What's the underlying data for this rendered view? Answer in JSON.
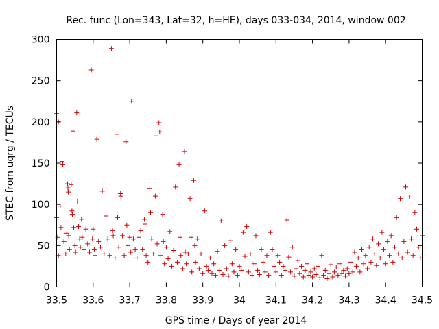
{
  "chart_data": {
    "type": "scatter",
    "title": "Rec. func (Lon=343, Lat=32, h=HE), days 033-034, 2014, window 002",
    "xlabel": "GPS time / Days of year 2014",
    "ylabel": "STEC from uqrg / TECUs",
    "xlim": [
      33.5,
      34.5
    ],
    "ylim": [
      0,
      300
    ],
    "xticks": [
      "33.5",
      "33.6",
      "33.7",
      "33.8",
      "33.9",
      "34",
      "34.1",
      "34.2",
      "34.3",
      "34.4",
      "34.5"
    ],
    "yticks": [
      "0",
      "50",
      "100",
      "150",
      "200",
      "250",
      "300"
    ],
    "grid": false,
    "marker": "plus",
    "color": "#cc0000",
    "series": [
      {
        "name": "STEC",
        "points": [
          [
            33.5,
            210
          ],
          [
            33.505,
            200
          ],
          [
            33.5,
            84
          ],
          [
            33.503,
            60
          ],
          [
            33.505,
            38
          ],
          [
            33.51,
            98
          ],
          [
            33.512,
            72
          ],
          [
            33.515,
            152
          ],
          [
            33.517,
            148
          ],
          [
            33.52,
            55
          ],
          [
            33.525,
            40
          ],
          [
            33.528,
            65
          ],
          [
            33.53,
            125
          ],
          [
            33.531,
            120
          ],
          [
            33.532,
            115
          ],
          [
            33.533,
            62
          ],
          [
            33.535,
            45
          ],
          [
            33.54,
            124
          ],
          [
            33.542,
            92
          ],
          [
            33.543,
            88
          ],
          [
            33.545,
            189
          ],
          [
            33.547,
            72
          ],
          [
            33.55,
            50
          ],
          [
            33.552,
            42
          ],
          [
            33.555,
            211
          ],
          [
            33.557,
            103
          ],
          [
            33.56,
            73
          ],
          [
            33.563,
            58
          ],
          [
            33.565,
            48
          ],
          [
            33.568,
            82
          ],
          [
            33.57,
            60
          ],
          [
            33.575,
            45
          ],
          [
            33.58,
            70
          ],
          [
            33.585,
            52
          ],
          [
            33.59,
            42
          ],
          [
            33.595,
            263
          ],
          [
            33.598,
            58
          ],
          [
            33.6,
            70
          ],
          [
            33.603,
            45
          ],
          [
            33.605,
            38
          ],
          [
            33.61,
            179
          ],
          [
            33.615,
            55
          ],
          [
            33.62,
            48
          ],
          [
            33.625,
            116
          ],
          [
            33.63,
            40
          ],
          [
            33.635,
            86
          ],
          [
            33.64,
            58
          ],
          [
            33.645,
            38
          ],
          [
            33.65,
            289
          ],
          [
            33.653,
            68
          ],
          [
            33.655,
            62
          ],
          [
            33.66,
            35
          ],
          [
            33.665,
            185
          ],
          [
            33.667,
            84
          ],
          [
            33.67,
            48
          ],
          [
            33.675,
            113
          ],
          [
            33.676,
            110
          ],
          [
            33.68,
            62
          ],
          [
            33.685,
            38
          ],
          [
            33.69,
            176
          ],
          [
            33.692,
            75
          ],
          [
            33.695,
            50
          ],
          [
            33.7,
            60
          ],
          [
            33.703,
            42
          ],
          [
            33.705,
            225
          ],
          [
            33.71,
            58
          ],
          [
            33.715,
            45
          ],
          [
            33.72,
            35
          ],
          [
            33.725,
            60
          ],
          [
            33.73,
            68
          ],
          [
            33.735,
            45
          ],
          [
            33.74,
            82
          ],
          [
            33.742,
            76
          ],
          [
            33.745,
            38
          ],
          [
            33.75,
            30
          ],
          [
            33.755,
            119
          ],
          [
            33.757,
            90
          ],
          [
            33.76,
            58
          ],
          [
            33.765,
            40
          ],
          [
            33.77,
            110
          ],
          [
            33.772,
            183
          ],
          [
            33.775,
            52
          ],
          [
            33.78,
            199
          ],
          [
            33.782,
            188
          ],
          [
            33.785,
            38
          ],
          [
            33.79,
            88
          ],
          [
            33.792,
            55
          ],
          [
            33.795,
            28
          ],
          [
            33.8,
            48
          ],
          [
            33.805,
            34
          ],
          [
            33.81,
            67
          ],
          [
            33.815,
            25
          ],
          [
            33.82,
            44
          ],
          [
            33.825,
            121
          ],
          [
            33.83,
            30
          ],
          [
            33.835,
            148
          ],
          [
            33.838,
            60
          ],
          [
            33.84,
            38
          ],
          [
            33.845,
            22
          ],
          [
            33.85,
            164
          ],
          [
            33.852,
            42
          ],
          [
            33.855,
            28
          ],
          [
            33.86,
            40
          ],
          [
            33.865,
            107
          ],
          [
            33.868,
            60
          ],
          [
            33.87,
            18
          ],
          [
            33.875,
            129
          ],
          [
            33.878,
            50
          ],
          [
            33.88,
            30
          ],
          [
            33.885,
            58
          ],
          [
            33.89,
            22
          ],
          [
            33.895,
            40
          ],
          [
            33.9,
            16
          ],
          [
            33.905,
            92
          ],
          [
            33.91,
            25
          ],
          [
            33.915,
            20
          ],
          [
            33.92,
            35
          ],
          [
            33.925,
            16
          ],
          [
            33.93,
            28
          ],
          [
            33.935,
            14
          ],
          [
            33.94,
            43
          ],
          [
            33.945,
            20
          ],
          [
            33.95,
            80
          ],
          [
            33.955,
            15
          ],
          [
            33.96,
            50
          ],
          [
            33.965,
            22
          ],
          [
            33.97,
            13
          ],
          [
            33.975,
            56
          ],
          [
            33.98,
            28
          ],
          [
            33.985,
            18
          ],
          [
            33.99,
            45
          ],
          [
            33.995,
            14
          ],
          [
            34.0,
            25
          ],
          [
            34.005,
            20
          ],
          [
            34.01,
            66
          ],
          [
            34.015,
            37
          ],
          [
            34.02,
            73
          ],
          [
            34.025,
            18
          ],
          [
            34.03,
            40
          ],
          [
            34.035,
            14
          ],
          [
            34.04,
            28
          ],
          [
            34.045,
            62
          ],
          [
            34.05,
            20
          ],
          [
            34.055,
            15
          ],
          [
            34.06,
            45
          ],
          [
            34.065,
            30
          ],
          [
            34.07,
            18
          ],
          [
            34.075,
            38
          ],
          [
            34.08,
            14
          ],
          [
            34.085,
            66
          ],
          [
            34.09,
            45
          ],
          [
            34.095,
            25
          ],
          [
            34.1,
            18
          ],
          [
            34.105,
            38
          ],
          [
            34.11,
            30
          ],
          [
            34.115,
            14
          ],
          [
            34.12,
            25
          ],
          [
            34.125,
            20
          ],
          [
            34.13,
            81
          ],
          [
            34.135,
            36
          ],
          [
            34.14,
            18
          ],
          [
            34.145,
            48
          ],
          [
            34.15,
            13
          ],
          [
            34.155,
            22
          ],
          [
            34.16,
            32
          ],
          [
            34.165,
            16
          ],
          [
            34.17,
            25
          ],
          [
            34.175,
            12
          ],
          [
            34.18,
            20
          ],
          [
            34.185,
            28
          ],
          [
            34.19,
            14
          ],
          [
            34.195,
            18
          ],
          [
            34.2,
            12
          ],
          [
            34.205,
            22
          ],
          [
            34.21,
            15
          ],
          [
            34.215,
            25
          ],
          [
            34.22,
            11
          ],
          [
            34.225,
            38
          ],
          [
            34.23,
            14
          ],
          [
            34.235,
            20
          ],
          [
            34.24,
            10
          ],
          [
            34.245,
            16
          ],
          [
            34.25,
            27
          ],
          [
            34.255,
            12
          ],
          [
            34.26,
            18
          ],
          [
            34.265,
            24
          ],
          [
            34.27,
            14
          ],
          [
            34.275,
            28
          ],
          [
            34.28,
            16
          ],
          [
            34.285,
            20
          ],
          [
            34.29,
            13
          ],
          [
            34.295,
            22
          ],
          [
            34.3,
            16
          ],
          [
            34.305,
            30
          ],
          [
            34.31,
            18
          ],
          [
            34.315,
            42
          ],
          [
            34.32,
            25
          ],
          [
            34.325,
            35
          ],
          [
            34.33,
            18
          ],
          [
            34.335,
            45
          ],
          [
            34.34,
            28
          ],
          [
            34.345,
            38
          ],
          [
            34.35,
            22
          ],
          [
            34.355,
            48
          ],
          [
            34.36,
            30
          ],
          [
            34.365,
            58
          ],
          [
            34.37,
            40
          ],
          [
            34.375,
            26
          ],
          [
            34.38,
            52
          ],
          [
            34.385,
            35
          ],
          [
            34.39,
            66
          ],
          [
            34.395,
            45
          ],
          [
            34.4,
            28
          ],
          [
            34.405,
            55
          ],
          [
            34.41,
            38
          ],
          [
            34.415,
            62
          ],
          [
            34.42,
            30
          ],
          [
            34.425,
            48
          ],
          [
            34.43,
            84
          ],
          [
            34.435,
            40
          ],
          [
            34.44,
            107
          ],
          [
            34.445,
            35
          ],
          [
            34.45,
            55
          ],
          [
            34.455,
            121
          ],
          [
            34.46,
            42
          ],
          [
            34.465,
            109
          ],
          [
            34.47,
            58
          ],
          [
            34.475,
            38
          ],
          [
            34.48,
            90
          ],
          [
            34.485,
            70
          ],
          [
            34.49,
            48
          ],
          [
            34.495,
            35
          ],
          [
            34.5,
            62
          ]
        ]
      }
    ]
  }
}
